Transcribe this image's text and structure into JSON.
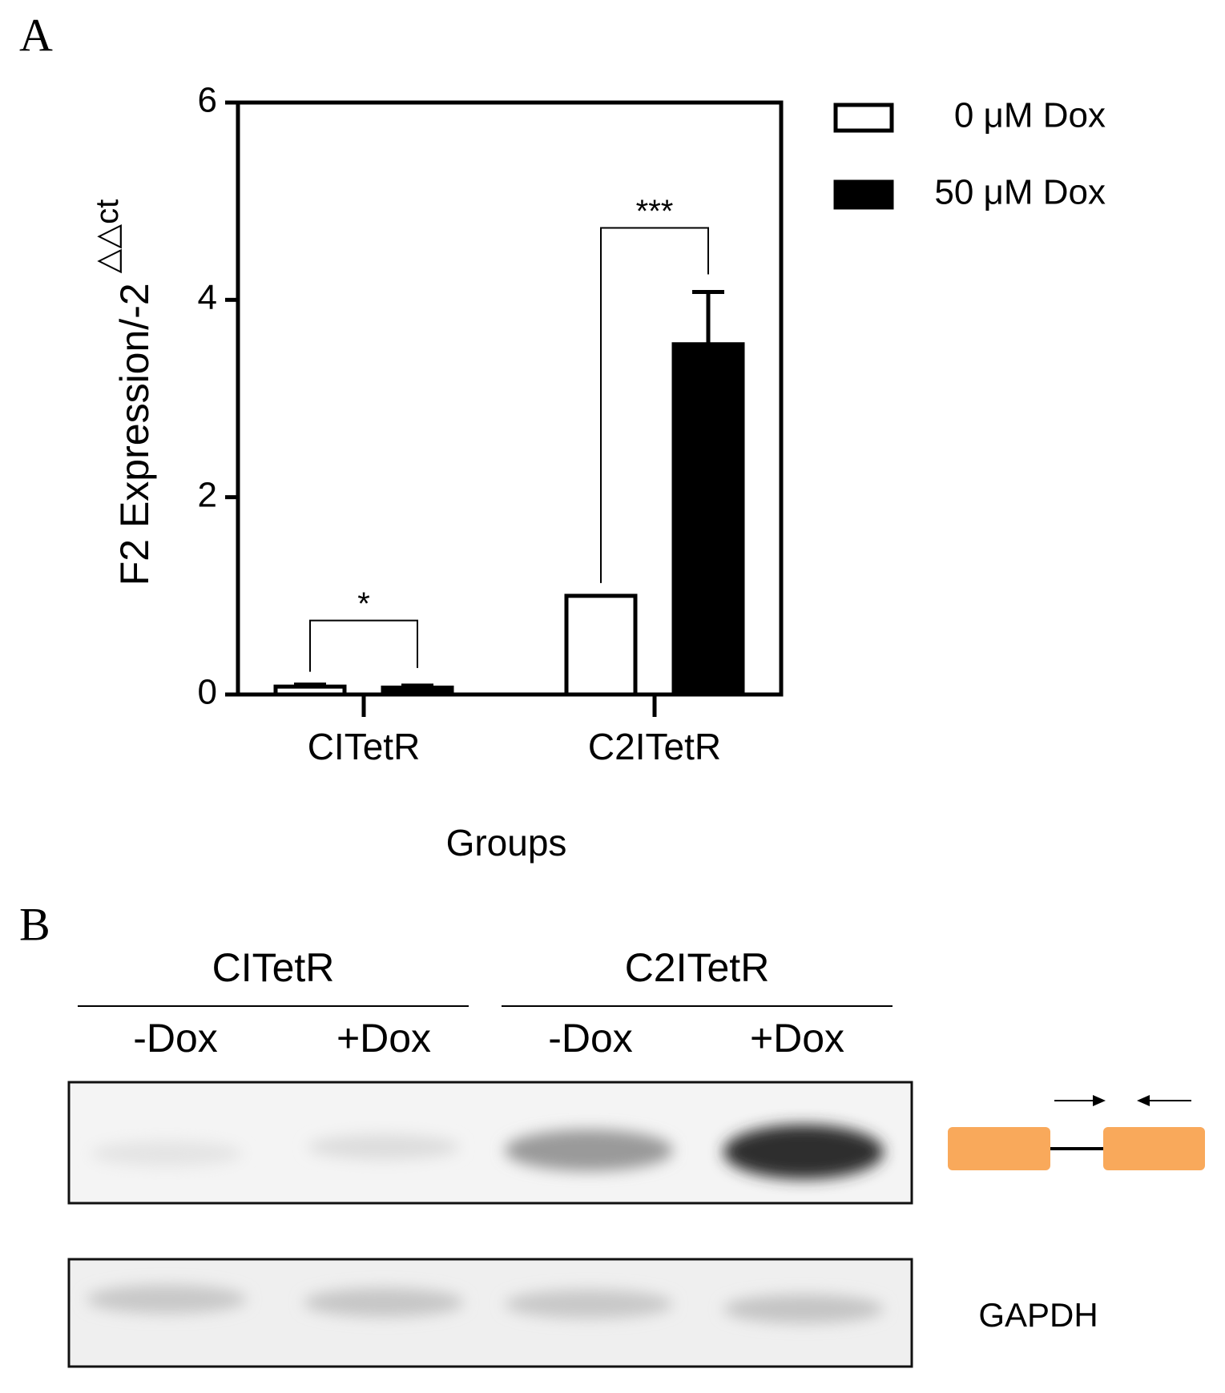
{
  "panels": [
    "A",
    "B"
  ],
  "chart_data": {
    "type": "bar",
    "y_label": "F2 Expression/-2",
    "y_label_superscript": "△△ct",
    "x_label": "Groups",
    "categories": [
      "CITetR",
      "C2ITetR"
    ],
    "series": [
      {
        "name": "0 μM Dox",
        "color": "#ffffff",
        "values": [
          0.08,
          1.0
        ],
        "errors": [
          0.02,
          0
        ]
      },
      {
        "name": "50 μM Dox",
        "color": "#000000",
        "values": [
          0.07,
          3.55
        ],
        "errors": [
          0.02,
          0.53
        ]
      }
    ],
    "annotations": [
      "*",
      "***"
    ],
    "ylim": [
      0,
      6
    ],
    "yticks": [
      0,
      2,
      4,
      6
    ],
    "legend": "outside-right"
  },
  "blot": {
    "groups": [
      {
        "name": "CITetR",
        "lanes": [
          "-Dox",
          "+Dox"
        ]
      },
      {
        "name": "C2ITetR",
        "lanes": [
          "-Dox",
          "+Dox"
        ]
      }
    ],
    "loading_control": "GAPDH"
  }
}
